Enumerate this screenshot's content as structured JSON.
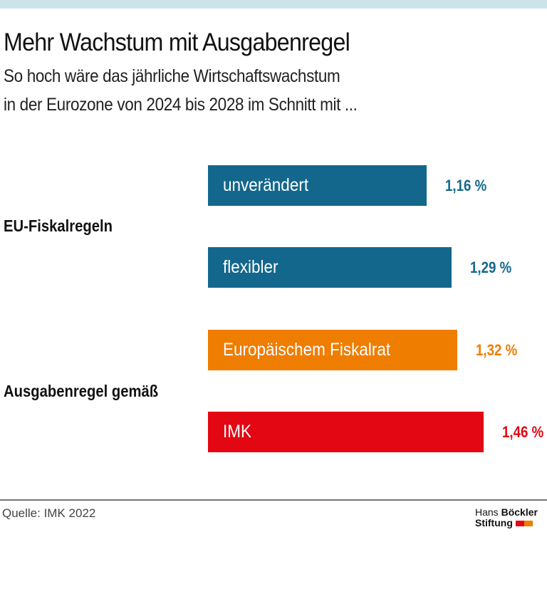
{
  "title": "Mehr Wachstum mit Ausgabenregel",
  "subtitle_line1": "So hoch wäre das jährliche Wirtschaftswachstum",
  "subtitle_line2": "in der Eurozone von 2024 bis 2028 im Schnitt mit ...",
  "groups": [
    "EU-Fiskalregeln",
    "Ausgabenregel gemäß"
  ],
  "source": "Quelle: IMK 2022",
  "logo": {
    "line1a": "Hans",
    "line1b": "Böckler",
    "line2": "Stiftung",
    "colors": [
      "#e30613",
      "#ef7d00"
    ]
  },
  "chart_data": {
    "type": "bar",
    "orientation": "horizontal",
    "categories": [
      "unverändert",
      "flexibler",
      "Europäischem Fiskalrat",
      "IMK"
    ],
    "values": [
      1.16,
      1.29,
      1.32,
      1.46
    ],
    "value_labels": [
      "1,16 %",
      "1,29 %",
      "1,32 %",
      "1,46 %"
    ],
    "colors": [
      "#14678c",
      "#14678c",
      "#ef7d00",
      "#e30613"
    ],
    "group_of_category": [
      "EU-Fiskalregeln",
      "EU-Fiskalregeln",
      "Ausgabenregel gemäß",
      "Ausgabenregel gemäß"
    ],
    "grid": false
  }
}
